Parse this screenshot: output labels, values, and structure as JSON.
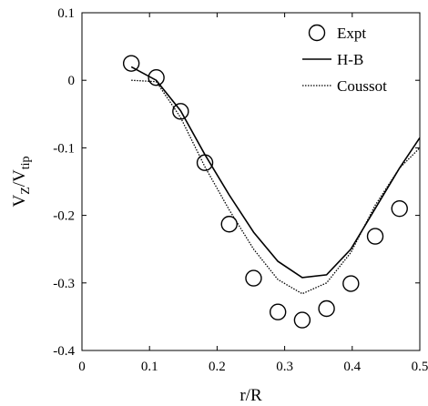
{
  "chart_data": {
    "type": "line",
    "xlabel": "r/R",
    "ylabel": {
      "main": "V",
      "sub1": "Z",
      "slash": "/V",
      "sub2": "tip"
    },
    "xlim": [
      0,
      0.5
    ],
    "ylim": [
      -0.4,
      0.1
    ],
    "xticks": [
      0,
      0.1,
      0.2,
      0.3,
      0.4,
      0.5
    ],
    "yticks": [
      0.1,
      0,
      -0.1,
      -0.2,
      -0.3,
      -0.4
    ],
    "xtick_labels": [
      "0",
      "0.1",
      "0.2",
      "0.3",
      "0.4",
      "0.5"
    ],
    "ytick_labels": [
      "0.1",
      "0",
      "-0.1",
      "-0.2",
      "-0.3",
      "-0.4"
    ],
    "grid": false,
    "legend_position": "top-right",
    "series": [
      {
        "name": "Expt",
        "style": "circles",
        "x": [
          0.073,
          0.11,
          0.146,
          0.182,
          0.218,
          0.254,
          0.29,
          0.326,
          0.362,
          0.398,
          0.434,
          0.47
        ],
        "y": [
          0.025,
          0.004,
          -0.046,
          -0.122,
          -0.213,
          -0.293,
          -0.343,
          -0.355,
          -0.338,
          -0.301,
          -0.231,
          -0.19
        ]
      },
      {
        "name": "H-B",
        "style": "solid",
        "x": [
          0.073,
          0.11,
          0.146,
          0.182,
          0.218,
          0.254,
          0.29,
          0.326,
          0.362,
          0.398,
          0.434,
          0.47,
          0.5
        ],
        "y": [
          0.02,
          0.0,
          -0.045,
          -0.11,
          -0.17,
          -0.225,
          -0.268,
          -0.292,
          -0.288,
          -0.25,
          -0.19,
          -0.13,
          -0.085
        ]
      },
      {
        "name": "Coussot",
        "style": "dotted",
        "x": [
          0.073,
          0.11,
          0.146,
          0.182,
          0.218,
          0.254,
          0.29,
          0.326,
          0.362,
          0.398,
          0.434,
          0.47,
          0.5
        ],
        "y": [
          0.0,
          -0.002,
          -0.055,
          -0.128,
          -0.192,
          -0.25,
          -0.295,
          -0.316,
          -0.3,
          -0.255,
          -0.185,
          -0.13,
          -0.1
        ]
      }
    ]
  }
}
